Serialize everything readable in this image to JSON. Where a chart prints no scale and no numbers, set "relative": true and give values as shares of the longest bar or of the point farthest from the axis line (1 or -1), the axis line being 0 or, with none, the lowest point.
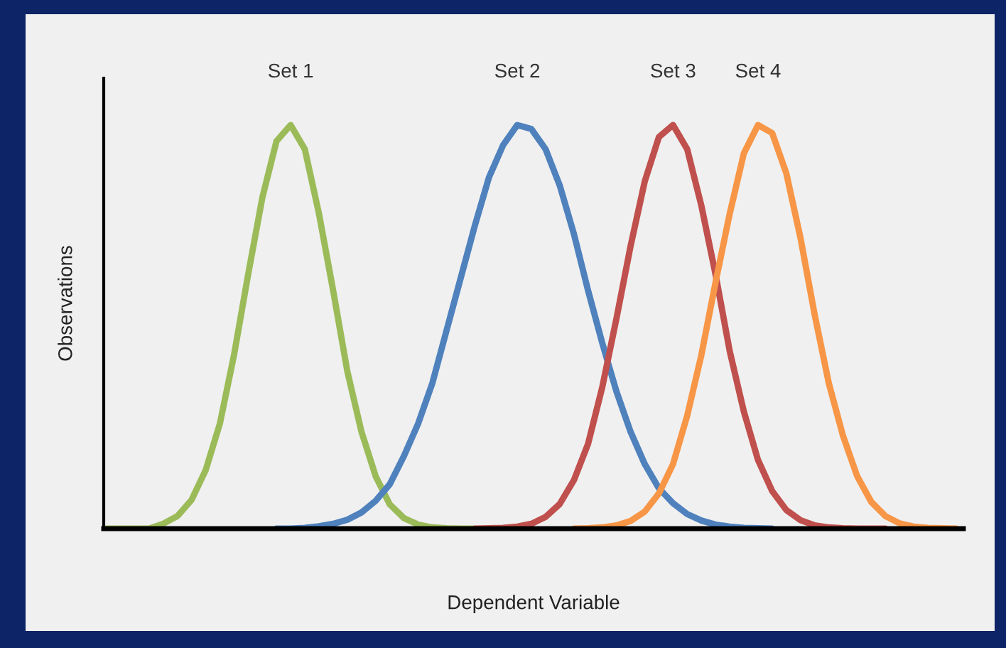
{
  "chart_data": {
    "type": "line",
    "relative": true,
    "xlabel": "Dependent Variable",
    "ylabel": "Observations",
    "grid": false,
    "categories": [
      null,
      null,
      null,
      null,
      null,
      null,
      null,
      null,
      null,
      null,
      null,
      null,
      null,
      null,
      null,
      null,
      null,
      null,
      null,
      null,
      null,
      null,
      null,
      null,
      null,
      null,
      null,
      null,
      null,
      null,
      null,
      null,
      null,
      null,
      null,
      null,
      null,
      null,
      null,
      null,
      null,
      null,
      null,
      null,
      null,
      null,
      null,
      null,
      null,
      null,
      null,
      null,
      null,
      null,
      null,
      null,
      null,
      null,
      null,
      null,
      null
    ],
    "series": [
      {
        "name": "Set 1",
        "color": "#9bbb59",
        "values": [
          0,
          0,
          0,
          0,
          0.012,
          0.031,
          0.071,
          0.145,
          0.26,
          0.43,
          0.63,
          0.82,
          0.96,
          1.0,
          0.94,
          0.78,
          0.59,
          0.39,
          0.24,
          0.13,
          0.06,
          0.026,
          0.01,
          0.003,
          0.001,
          0,
          0,
          null,
          null,
          null,
          null,
          null,
          null,
          null,
          null,
          null,
          null,
          null,
          null,
          null,
          null,
          null,
          null,
          null,
          null,
          null,
          null,
          null,
          null,
          null,
          null,
          null,
          null,
          null,
          null,
          null,
          null,
          null,
          null,
          null,
          null
        ]
      },
      {
        "name": "Set 2",
        "color": "#4f81bd",
        "values": [
          null,
          null,
          null,
          null,
          null,
          null,
          null,
          null,
          null,
          null,
          null,
          null,
          0,
          0,
          0.002,
          0.006,
          0.012,
          0.022,
          0.04,
          0.069,
          0.11,
          0.18,
          0.26,
          0.36,
          0.49,
          0.62,
          0.75,
          0.87,
          0.95,
          1.0,
          0.99,
          0.94,
          0.85,
          0.73,
          0.59,
          0.46,
          0.34,
          0.24,
          0.16,
          0.1,
          0.063,
          0.036,
          0.02,
          0.01,
          0.005,
          0.002,
          0.001,
          0,
          null,
          null,
          null,
          null,
          null,
          null,
          null,
          null,
          null,
          null,
          null,
          null,
          null
        ]
      },
      {
        "name": "Set 3",
        "color": "#c0504d",
        "values": [
          null,
          null,
          null,
          null,
          null,
          null,
          null,
          null,
          null,
          null,
          null,
          null,
          null,
          null,
          null,
          null,
          null,
          null,
          null,
          null,
          null,
          null,
          null,
          null,
          null,
          null,
          0,
          0.001,
          0.002,
          0.005,
          0.012,
          0.029,
          0.061,
          0.12,
          0.21,
          0.35,
          0.52,
          0.7,
          0.86,
          0.97,
          1.0,
          0.94,
          0.8,
          0.63,
          0.44,
          0.29,
          0.17,
          0.093,
          0.046,
          0.021,
          0.008,
          0.003,
          0.001,
          0,
          0,
          0,
          null,
          null,
          null,
          null,
          null
        ]
      },
      {
        "name": "Set 4",
        "color": "#f79646",
        "values": [
          null,
          null,
          null,
          null,
          null,
          null,
          null,
          null,
          null,
          null,
          null,
          null,
          null,
          null,
          null,
          null,
          null,
          null,
          null,
          null,
          null,
          null,
          null,
          null,
          null,
          null,
          null,
          null,
          null,
          null,
          null,
          null,
          null,
          0,
          0.001,
          0.003,
          0.008,
          0.019,
          0.042,
          0.087,
          0.16,
          0.28,
          0.43,
          0.61,
          0.78,
          0.93,
          1.0,
          0.98,
          0.88,
          0.72,
          0.53,
          0.36,
          0.23,
          0.13,
          0.066,
          0.031,
          0.013,
          0.005,
          0.002,
          0.001,
          0
        ]
      }
    ]
  }
}
